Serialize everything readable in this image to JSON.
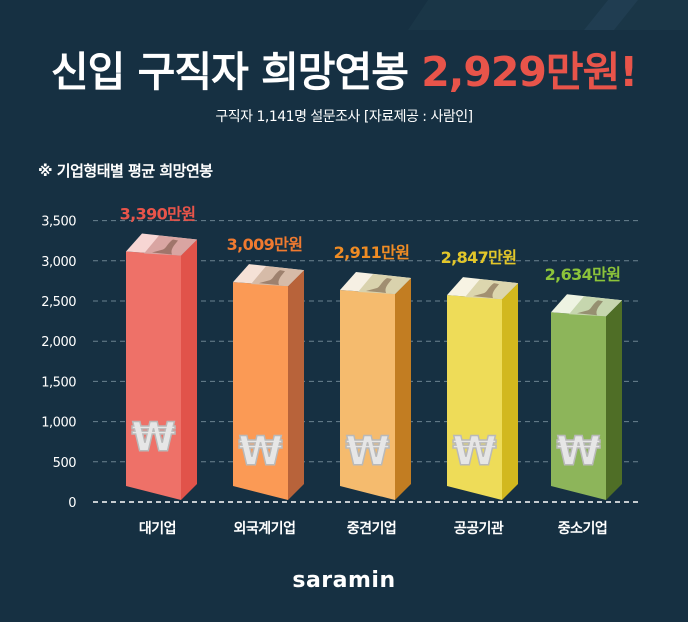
{
  "header": {
    "title_prefix": "신입 구직자 희망연봉 ",
    "title_highlight": "2,929만원!",
    "subtitle": "구직자 1,141명 설문조사 [자료제공 : 사람인]"
  },
  "chart_section": {
    "title": "※ 기업형태별 평균 희망연봉"
  },
  "footer": {
    "logo": "saramin"
  },
  "colors": {
    "background": "#163042",
    "highlight": "#e8544a",
    "gridline": "#6b8290"
  },
  "chart_data": {
    "type": "bar",
    "title": "※ 기업형태별 평균 희망연봉",
    "xlabel": "",
    "ylabel": "",
    "unit": "만원",
    "categories": [
      "대기업",
      "외국계기업",
      "중견기업",
      "공공기관",
      "중소기업"
    ],
    "values": [
      3390,
      3009,
      2911,
      2847,
      2634
    ],
    "value_labels": [
      "3,390만원",
      "3,009만원",
      "2,911만원",
      "2,847만원",
      "2,634만원"
    ],
    "ylim": [
      0,
      3500
    ],
    "yticks": [
      0,
      500,
      1000,
      1500,
      2000,
      2500,
      3000,
      3500
    ],
    "ytick_labels": [
      "0",
      "500",
      "1,000",
      "1,500",
      "2,000",
      "2,500",
      "3,000",
      "3,500"
    ],
    "grid": true,
    "legend": "none",
    "bar_colors": [
      {
        "front": "#ee7168",
        "side": "#e1534a",
        "top": "#f7d6d4",
        "bill": "#d9a5a2",
        "label": "#e8544a"
      },
      {
        "front": "#fb9a55",
        "side": "#b8633a",
        "top": "#f5e1d6",
        "bill": "#d6bba8",
        "label": "#f07a30"
      },
      {
        "front": "#f5bb6e",
        "side": "#c27d22",
        "top": "#f6f0e3",
        "bill": "#d9d2ad",
        "label": "#f08c24"
      },
      {
        "front": "#eedc58",
        "side": "#d2b81e",
        "top": "#f7f3e3",
        "bill": "#dcd6ae",
        "label": "#e2c62a"
      },
      {
        "front": "#8db55a",
        "side": "#4f6e26",
        "top": "#eef3e2",
        "bill": "#c6d6ae",
        "label": "#8cc43a"
      }
    ],
    "bar_icon": "won-sign-icon"
  }
}
